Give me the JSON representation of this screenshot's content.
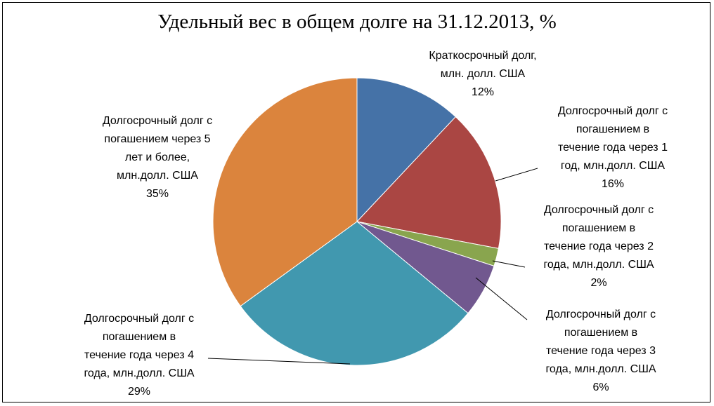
{
  "chart_data": {
    "type": "pie",
    "title": "Удельный вес в общем долге на 31.12.2013, %",
    "slices": [
      {
        "value": 12,
        "color": "#4572A7",
        "lines": [
          "Краткосрочный долг,",
          "млн. долл. США",
          "12%"
        ]
      },
      {
        "value": 16,
        "color": "#AA4643",
        "lines": [
          "Долгосрочный долг с",
          "погашением в",
          "течение года через 1",
          "год, млн.долл. США",
          "16%"
        ]
      },
      {
        "value": 2,
        "color": "#89A54E",
        "lines": [
          "Долгосрочный долг с",
          "погашением в",
          "течение года через 2",
          "года, млн.долл. США",
          "2%"
        ]
      },
      {
        "value": 6,
        "color": "#71588F",
        "lines": [
          "Долгосрочный долг с",
          "погашением в",
          "течение года через 3",
          "года, млн.долл. США",
          "6%"
        ]
      },
      {
        "value": 29,
        "color": "#4198AF",
        "lines": [
          "Долгосрочный долг с",
          "погашением в",
          "течение года через 4",
          "года, млн.долл. США",
          "29%"
        ]
      },
      {
        "value": 35,
        "color": "#DB843D",
        "lines": [
          "Долгосрочный долг с",
          "погашением через 5",
          "лет и более,",
          "млн.долл. США",
          "35%"
        ]
      }
    ]
  }
}
